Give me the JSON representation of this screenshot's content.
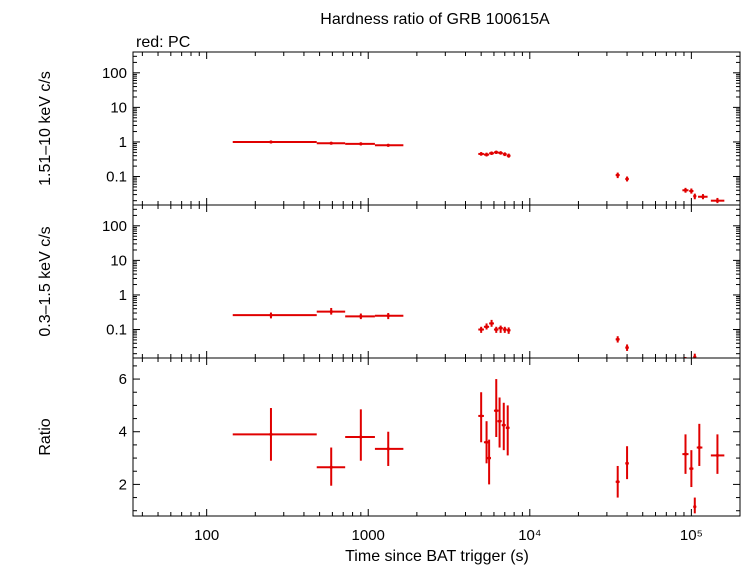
{
  "chart_data": {
    "type": "scatter",
    "title": "Hardness ratio of GRB 100615A",
    "subtitle": "red: PC",
    "xlabel": "Time since BAT trigger (s)",
    "xscale": "log",
    "xlim": [
      35,
      200000
    ],
    "x_tick_labels": [
      "100",
      "1000",
      "10⁴",
      "10⁵"
    ],
    "series_color": "#e00000",
    "panels": [
      {
        "name": "hard",
        "ylabel": "1.51–10 keV c/s",
        "yscale": "log",
        "ylim": [
          0.015,
          400
        ],
        "y_tick_labels": [
          "0.1",
          "1",
          "10",
          "100"
        ],
        "points": [
          {
            "x": 250,
            "y": 1.0,
            "xlo": 145,
            "xhi": 480,
            "ylo": 0.92,
            "yhi": 1.08
          },
          {
            "x": 590,
            "y": 0.92,
            "xlo": 480,
            "xhi": 720,
            "ylo": 0.85,
            "yhi": 1.0
          },
          {
            "x": 900,
            "y": 0.88,
            "xlo": 720,
            "xhi": 1100,
            "ylo": 0.8,
            "yhi": 0.97
          },
          {
            "x": 1330,
            "y": 0.8,
            "xlo": 1100,
            "xhi": 1650,
            "ylo": 0.73,
            "yhi": 0.88
          },
          {
            "x": 5000,
            "y": 0.45,
            "xlo": 4800,
            "xhi": 5200,
            "ylo": 0.4,
            "yhi": 0.51
          },
          {
            "x": 5400,
            "y": 0.43,
            "xlo": 5200,
            "xhi": 5600,
            "ylo": 0.38,
            "yhi": 0.49
          },
          {
            "x": 5800,
            "y": 0.47,
            "xlo": 5600,
            "xhi": 6000,
            "ylo": 0.42,
            "yhi": 0.53
          },
          {
            "x": 6200,
            "y": 0.5,
            "xlo": 6000,
            "xhi": 6400,
            "ylo": 0.45,
            "yhi": 0.56
          },
          {
            "x": 6600,
            "y": 0.48,
            "xlo": 6400,
            "xhi": 6800,
            "ylo": 0.43,
            "yhi": 0.54
          },
          {
            "x": 7000,
            "y": 0.44,
            "xlo": 6800,
            "xhi": 7200,
            "ylo": 0.39,
            "yhi": 0.5
          },
          {
            "x": 7400,
            "y": 0.4,
            "xlo": 7200,
            "xhi": 7600,
            "ylo": 0.35,
            "yhi": 0.46
          },
          {
            "x": 35000,
            "y": 0.11,
            "xlo": 34000,
            "xhi": 36000,
            "ylo": 0.09,
            "yhi": 0.13
          },
          {
            "x": 40000,
            "y": 0.085,
            "xlo": 39000,
            "xhi": 41000,
            "ylo": 0.072,
            "yhi": 0.1
          },
          {
            "x": 92000,
            "y": 0.04,
            "xlo": 88000,
            "xhi": 96000,
            "ylo": 0.034,
            "yhi": 0.047
          },
          {
            "x": 100000,
            "y": 0.038,
            "xlo": 97000,
            "xhi": 103000,
            "ylo": 0.032,
            "yhi": 0.045
          },
          {
            "x": 105000,
            "y": 0.027,
            "xlo": 103000,
            "xhi": 107000,
            "ylo": 0.022,
            "yhi": 0.032
          },
          {
            "x": 118000,
            "y": 0.026,
            "xlo": 110000,
            "xhi": 126000,
            "ylo": 0.022,
            "yhi": 0.031
          },
          {
            "x": 145000,
            "y": 0.02,
            "xlo": 132000,
            "xhi": 160000,
            "ylo": 0.017,
            "yhi": 0.024
          }
        ]
      },
      {
        "name": "soft",
        "ylabel": "0.3–1.5 keV c/s",
        "yscale": "log",
        "ylim": [
          0.015,
          400
        ],
        "y_tick_labels": [
          "0.1",
          "1",
          "10",
          "100"
        ],
        "points": [
          {
            "x": 250,
            "y": 0.26,
            "xlo": 145,
            "xhi": 480,
            "ylo": 0.21,
            "yhi": 0.31
          },
          {
            "x": 590,
            "y": 0.33,
            "xlo": 480,
            "xhi": 720,
            "ylo": 0.27,
            "yhi": 0.42
          },
          {
            "x": 900,
            "y": 0.24,
            "xlo": 720,
            "xhi": 1100,
            "ylo": 0.2,
            "yhi": 0.29
          },
          {
            "x": 1330,
            "y": 0.25,
            "xlo": 1100,
            "xhi": 1650,
            "ylo": 0.2,
            "yhi": 0.3
          },
          {
            "x": 5000,
            "y": 0.1,
            "xlo": 4800,
            "xhi": 5200,
            "ylo": 0.08,
            "yhi": 0.12
          },
          {
            "x": 5400,
            "y": 0.12,
            "xlo": 5200,
            "xhi": 5600,
            "ylo": 0.1,
            "yhi": 0.15
          },
          {
            "x": 5800,
            "y": 0.15,
            "xlo": 5600,
            "xhi": 6000,
            "ylo": 0.12,
            "yhi": 0.19
          },
          {
            "x": 6200,
            "y": 0.1,
            "xlo": 6000,
            "xhi": 6400,
            "ylo": 0.08,
            "yhi": 0.12
          },
          {
            "x": 6600,
            "y": 0.11,
            "xlo": 6400,
            "xhi": 6800,
            "ylo": 0.08,
            "yhi": 0.13
          },
          {
            "x": 7000,
            "y": 0.1,
            "xlo": 6800,
            "xhi": 7200,
            "ylo": 0.08,
            "yhi": 0.12
          },
          {
            "x": 7400,
            "y": 0.095,
            "xlo": 7200,
            "xhi": 7600,
            "ylo": 0.075,
            "yhi": 0.115
          },
          {
            "x": 35000,
            "y": 0.052,
            "xlo": 34000,
            "xhi": 36000,
            "ylo": 0.042,
            "yhi": 0.064
          },
          {
            "x": 40000,
            "y": 0.03,
            "xlo": 39000,
            "xhi": 41000,
            "ylo": 0.024,
            "yhi": 0.037
          },
          {
            "x": 92000,
            "y": 0.013,
            "xlo": 88000,
            "xhi": 96000,
            "ylo": 0.01,
            "yhi": 0.016
          },
          {
            "x": 100000,
            "y": 0.012,
            "xlo": 97000,
            "xhi": 103000,
            "ylo": 0.009,
            "yhi": 0.015
          },
          {
            "x": 105000,
            "y": 0.016,
            "xlo": 103000,
            "xhi": 107000,
            "ylo": 0.013,
            "yhi": 0.02
          }
        ]
      },
      {
        "name": "ratio",
        "ylabel": "Ratio",
        "yscale": "linear",
        "ylim": [
          0.8,
          6.8
        ],
        "y_tick_labels": [
          "2",
          "4",
          "6"
        ],
        "points": [
          {
            "x": 250,
            "y": 3.9,
            "xlo": 145,
            "xhi": 480,
            "ylo": 2.9,
            "yhi": 4.9
          },
          {
            "x": 590,
            "y": 2.65,
            "xlo": 480,
            "xhi": 720,
            "ylo": 1.95,
            "yhi": 3.4
          },
          {
            "x": 900,
            "y": 3.8,
            "xlo": 720,
            "xhi": 1100,
            "ylo": 2.9,
            "yhi": 4.85
          },
          {
            "x": 1330,
            "y": 3.35,
            "xlo": 1100,
            "xhi": 1650,
            "ylo": 2.7,
            "yhi": 4.0
          },
          {
            "x": 5000,
            "y": 4.6,
            "xlo": 4800,
            "xhi": 5200,
            "ylo": 3.6,
            "yhi": 5.5
          },
          {
            "x": 5400,
            "y": 3.6,
            "xlo": 5200,
            "xhi": 5600,
            "ylo": 2.8,
            "yhi": 4.4
          },
          {
            "x": 5600,
            "y": 3.0,
            "xlo": 5450,
            "xhi": 5750,
            "ylo": 2.0,
            "yhi": 3.7
          },
          {
            "x": 6200,
            "y": 4.8,
            "xlo": 6000,
            "xhi": 6400,
            "ylo": 3.8,
            "yhi": 6.0
          },
          {
            "x": 6500,
            "y": 4.4,
            "xlo": 6300,
            "xhi": 6700,
            "ylo": 3.4,
            "yhi": 5.3
          },
          {
            "x": 6900,
            "y": 4.25,
            "xlo": 6700,
            "xhi": 7100,
            "ylo": 3.3,
            "yhi": 5.1
          },
          {
            "x": 7300,
            "y": 4.15,
            "xlo": 7100,
            "xhi": 7500,
            "ylo": 3.1,
            "yhi": 5.0
          },
          {
            "x": 35000,
            "y": 2.1,
            "xlo": 34000,
            "xhi": 36000,
            "ylo": 1.5,
            "yhi": 2.7
          },
          {
            "x": 40000,
            "y": 2.8,
            "xlo": 39000,
            "xhi": 41000,
            "ylo": 2.2,
            "yhi": 3.45
          },
          {
            "x": 92000,
            "y": 3.15,
            "xlo": 88000,
            "xhi": 96000,
            "ylo": 2.4,
            "yhi": 3.9
          },
          {
            "x": 100000,
            "y": 2.6,
            "xlo": 97000,
            "xhi": 103000,
            "ylo": 1.9,
            "yhi": 3.3
          },
          {
            "x": 105000,
            "y": 1.15,
            "xlo": 103000,
            "xhi": 107000,
            "ylo": 0.9,
            "yhi": 1.5
          },
          {
            "x": 112000,
            "y": 3.4,
            "xlo": 108000,
            "xhi": 117000,
            "ylo": 2.7,
            "yhi": 4.3
          },
          {
            "x": 145000,
            "y": 3.1,
            "xlo": 132000,
            "xhi": 160000,
            "ylo": 2.4,
            "yhi": 3.9
          }
        ]
      }
    ]
  }
}
